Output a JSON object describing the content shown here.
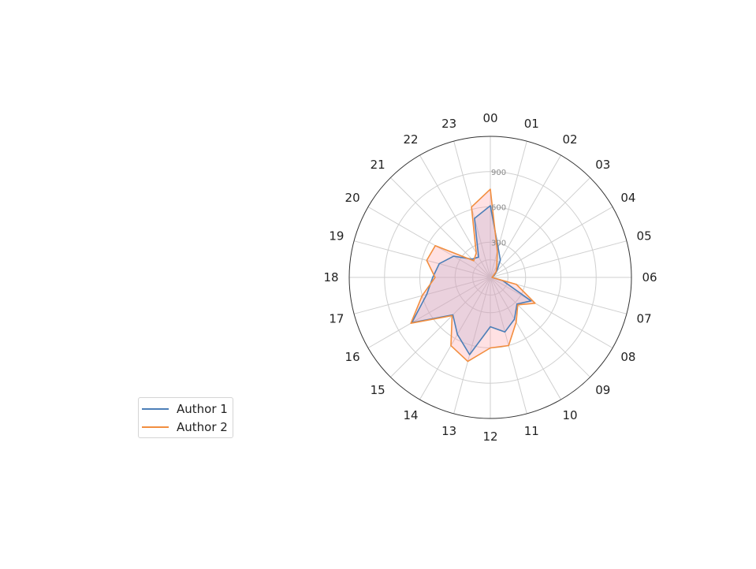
{
  "chart_data": {
    "type": "radar",
    "categories": [
      "00",
      "01",
      "02",
      "03",
      "04",
      "05",
      "06",
      "07",
      "08",
      "09",
      "10",
      "11",
      "12",
      "13",
      "14",
      "15",
      "16",
      "17",
      "18",
      "19",
      "20",
      "21",
      "22",
      "23"
    ],
    "r_ticks": [
      300,
      600,
      900
    ],
    "r_tick_labels": [
      "300",
      "600",
      "900"
    ],
    "rlim": [
      0,
      1200
    ],
    "grid": true,
    "legend": {
      "placement": "lower-left, outside the polar axes"
    },
    "series": [
      {
        "name": "Author 1",
        "color": "#4C7FB8",
        "fill": "#9BB3E0",
        "values": [
          610,
          260,
          170,
          80,
          40,
          20,
          15,
          110,
          400,
          320,
          410,
          480,
          420,
          680,
          560,
          450,
          770,
          560,
          490,
          450,
          360,
          220,
          200,
          520
        ]
      },
      {
        "name": "Author 2",
        "color": "#F28E3F",
        "fill": "#FF9AA2",
        "values": [
          750,
          230,
          110,
          70,
          30,
          20,
          15,
          230,
          440,
          330,
          440,
          600,
          600,
          740,
          670,
          460,
          780,
          600,
          470,
          560,
          540,
          200,
          240,
          620
        ]
      }
    ]
  }
}
